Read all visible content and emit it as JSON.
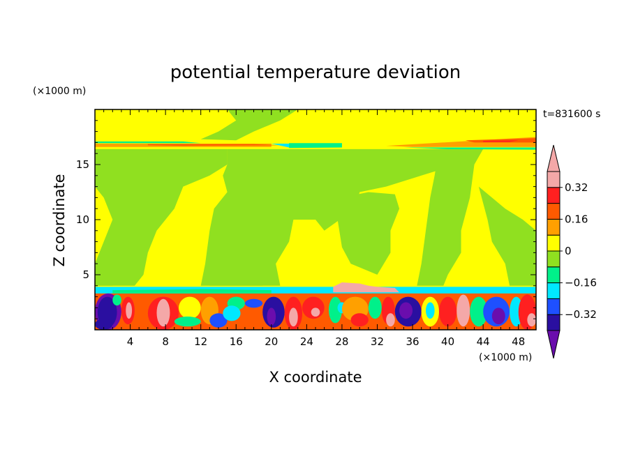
{
  "chart_data": {
    "type": "heatmap",
    "title": "potential temperature deviation",
    "xlabel": "X coordinate",
    "ylabel": "Z coordinate",
    "x_unit": "(×1000 m)",
    "y_unit": "(×1000 m)",
    "timestamp": "t=831600 s",
    "xlim": [
      0,
      50
    ],
    "ylim": [
      0,
      20
    ],
    "x_ticks": [
      4,
      8,
      12,
      16,
      20,
      24,
      28,
      32,
      36,
      40,
      44,
      48
    ],
    "y_ticks": [
      5,
      10,
      15
    ],
    "colorbar": {
      "levels": [
        -0.4,
        -0.32,
        -0.24,
        -0.16,
        -0.08,
        0,
        0.08,
        0.16,
        0.24,
        0.32,
        0.4
      ],
      "labels": [
        "0.32",
        "0.16",
        "0",
        "−0.16",
        "−0.32"
      ],
      "label_values": [
        0.32,
        0.16,
        0,
        -0.16,
        -0.32
      ],
      "colors": [
        "#6a0dad",
        "#2a0fa0",
        "#1e50ff",
        "#00e8ff",
        "#00f08a",
        "#90e020",
        "#ffff00",
        "#ffa000",
        "#ff5a00",
        "#ff2020",
        "#f4a8a8"
      ],
      "extend": "both"
    }
  }
}
